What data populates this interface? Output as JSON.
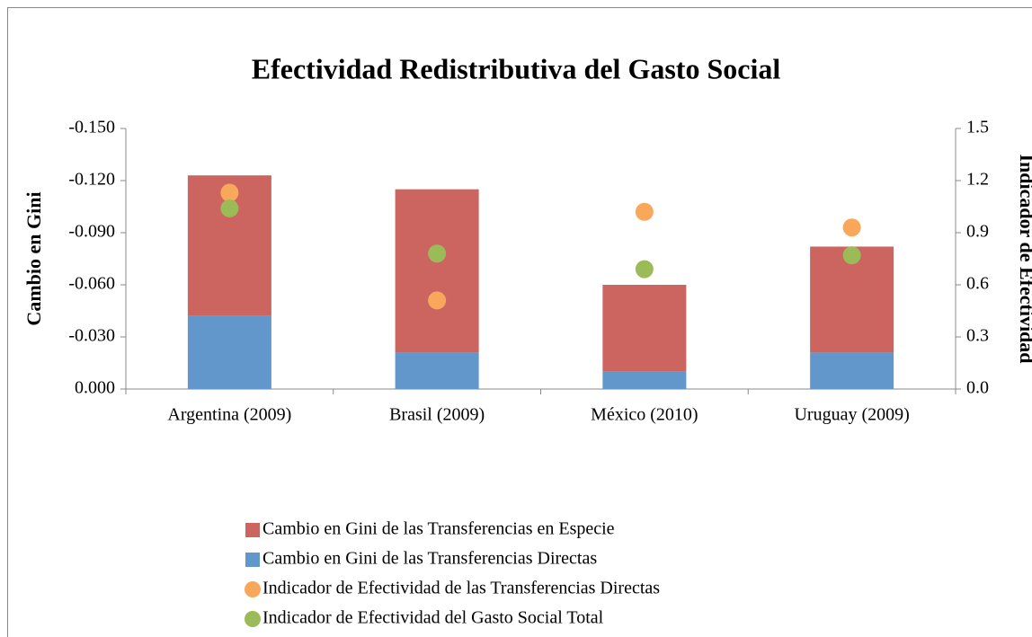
{
  "chart_data": {
    "type": "bar",
    "title": "Efectividad Redistributiva del Gasto Social",
    "y_label": "Cambio en Gini",
    "y2_label": "Indicador de Efectividad",
    "categories": [
      "Argentina (2009)",
      "Brasil (2009)",
      "México (2010)",
      "Uruguay (2009)"
    ],
    "stacked": true,
    "series": [
      {
        "name": "Cambio en Gini de las Transferencias Directas",
        "color": "#6197cb",
        "values": [
          -0.042,
          -0.021,
          -0.01,
          -0.021
        ]
      },
      {
        "name": "Cambio en Gini de las Transferencias en Especie",
        "color": "#cc6560",
        "values": [
          -0.081,
          -0.094,
          -0.05,
          -0.061
        ]
      },
      {
        "name": "Indicador de Efectividad de las Transferencias Directas",
        "color": "#f9a85b",
        "type": "scatter",
        "axis": "y2",
        "values": [
          1.13,
          0.51,
          1.02,
          0.93
        ]
      },
      {
        "name": "Indicador de Efectividad del Gasto Social Total",
        "color": "#9bbb59",
        "type": "scatter",
        "axis": "y2",
        "values": [
          1.04,
          0.78,
          0.69,
          0.77
        ]
      }
    ],
    "legend_order": [
      1,
      0,
      2,
      3
    ],
    "ylim": [
      0,
      -0.15
    ],
    "yticks": [
      {
        "value": 0,
        "label": "0.000"
      },
      {
        "value": -0.03,
        "label": "-0.030"
      },
      {
        "value": -0.06,
        "label": "-0.060"
      },
      {
        "value": -0.09,
        "label": "-0.090"
      },
      {
        "value": -0.12,
        "label": "-0.120"
      },
      {
        "value": -0.15,
        "label": "-0.150"
      }
    ],
    "y2lim": [
      0,
      1.5
    ],
    "y2ticks": [
      {
        "value": 0,
        "label": "0.0"
      },
      0.3,
      0.6,
      0.9,
      1.2,
      1.5
    ],
    "legend": "bottom",
    "grid": false
  }
}
